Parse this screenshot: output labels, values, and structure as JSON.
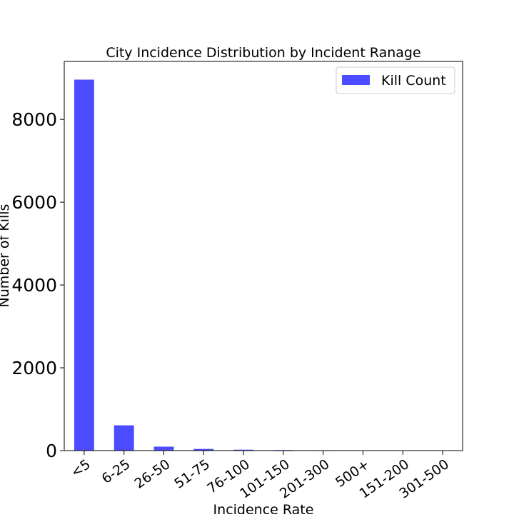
{
  "chart_data": {
    "type": "bar",
    "title": "City Incidence Distribution by Incident Ranage",
    "xlabel": "Incidence Rate",
    "ylabel": "Number of Kills",
    "categories": [
      "<5",
      "6-25",
      "26-50",
      "51-75",
      "76-100",
      "101-150",
      "201-300",
      "500+",
      "151-200",
      "301-500"
    ],
    "series": [
      {
        "name": "Kill Count",
        "color": "#4b4bff",
        "values": [
          8960,
          610,
          95,
          40,
          22,
          14,
          10,
          5,
          3,
          2
        ]
      }
    ],
    "ylim": [
      0,
      9400
    ],
    "yticks": [
      0,
      2000,
      4000,
      6000,
      8000
    ],
    "grid": false,
    "legend_position": "top-right"
  }
}
